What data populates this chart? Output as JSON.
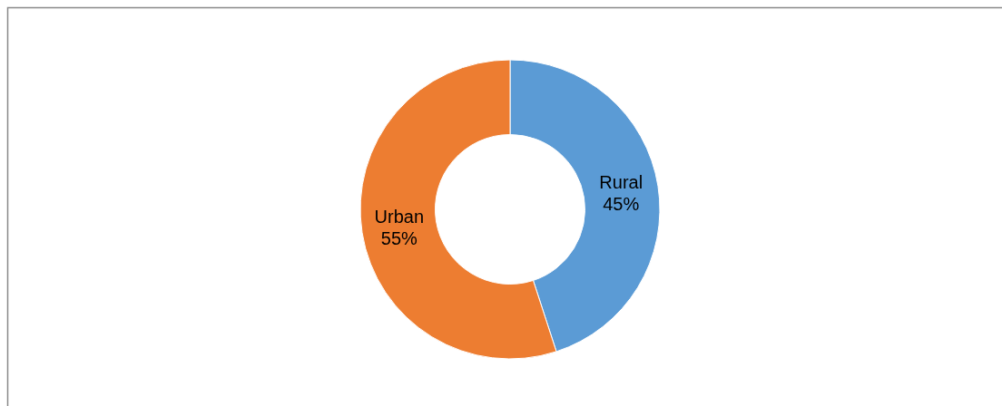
{
  "chart_data": {
    "type": "donut",
    "categories": [
      "Rural",
      "Urban"
    ],
    "values": [
      45,
      55
    ],
    "colors": [
      "#5b9bd5",
      "#ed7d31"
    ],
    "value_labels": [
      "45%",
      "55%"
    ]
  }
}
